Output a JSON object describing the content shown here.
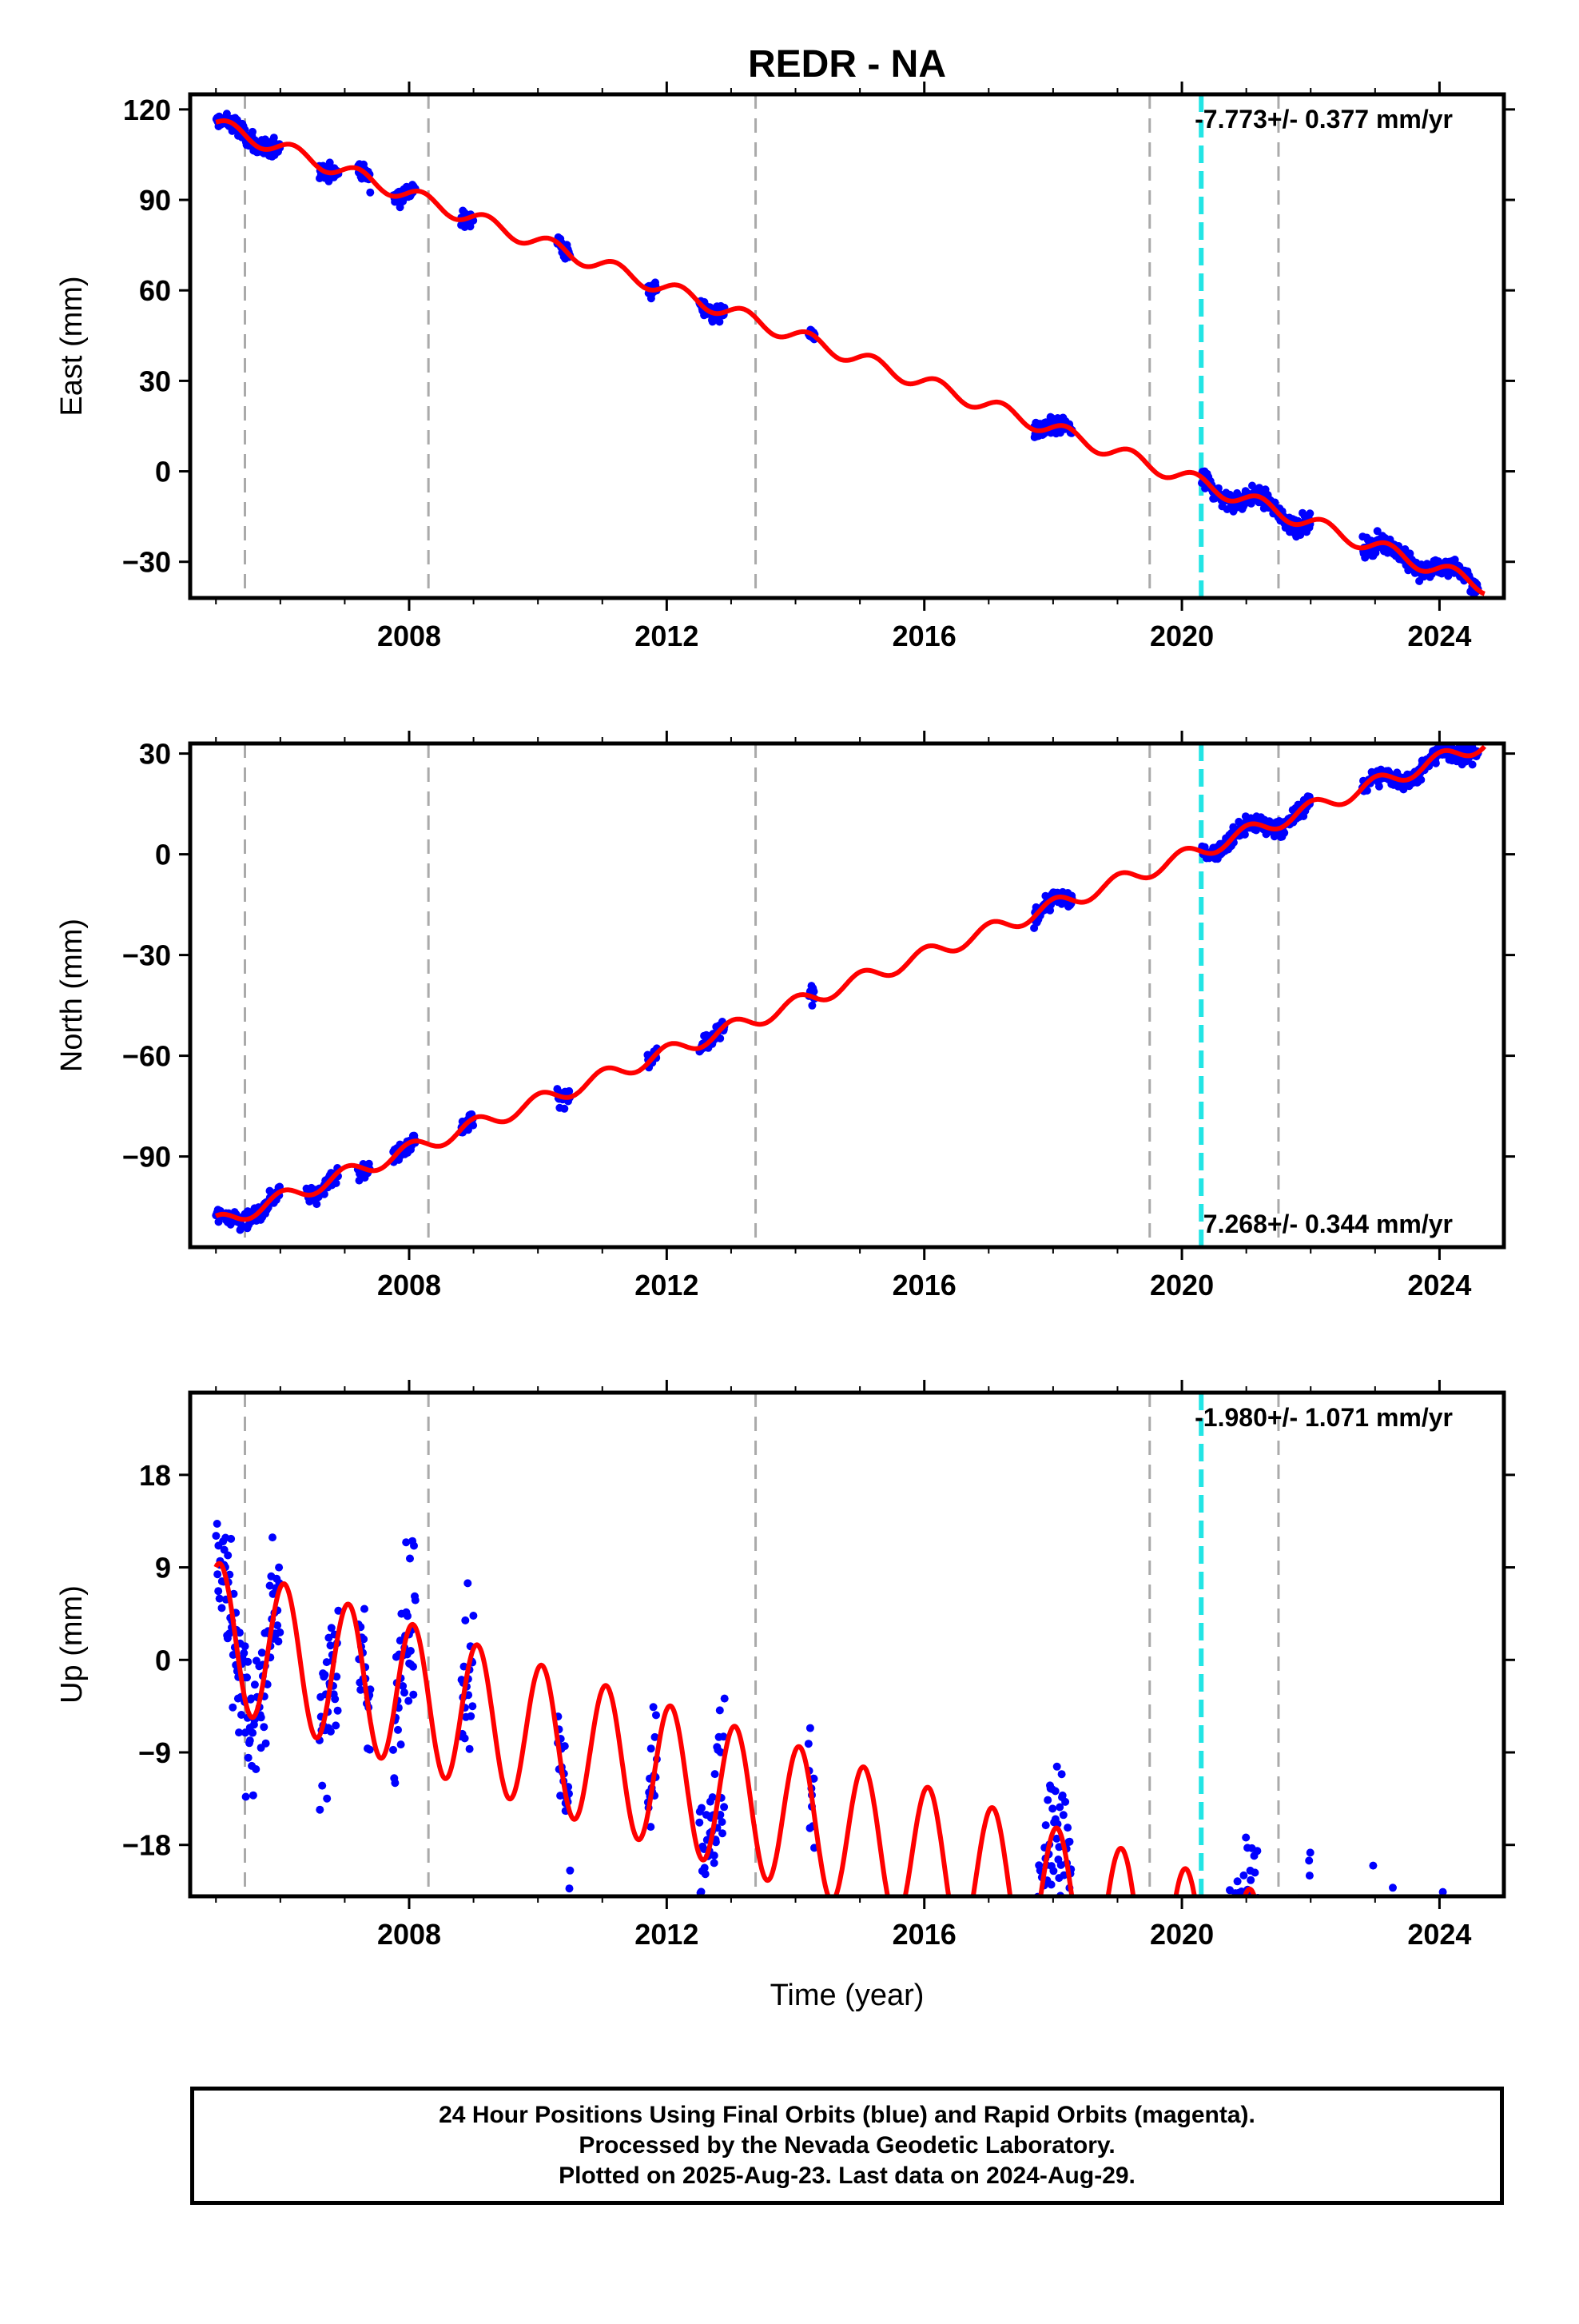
{
  "title": "REDR - NA",
  "colors": {
    "observations": "#0000ff",
    "model": "#ff0000",
    "event_marker": "#aaaaaa",
    "highlight_marker": "#22e5e5"
  },
  "x_axis_label": "Time (year)",
  "footer": {
    "line1": "24 Hour Positions Using Final Orbits (blue) and Rapid Orbits (magenta).",
    "line2": "Processed by the Nevada Geodetic Laboratory.",
    "line3": "Plotted on 2025-Aug-23. Last data on 2024-Aug-29."
  },
  "chart_data": [
    {
      "type": "scatter",
      "name": "east",
      "ylabel": "East (mm)",
      "velocity_label": "-7.773+/- 0.377 mm/yr",
      "velocity_position": "top-right",
      "xlim": [
        2004.6,
        2025.0
      ],
      "ylim": [
        -42,
        125
      ],
      "yticks": [
        120,
        90,
        60,
        30,
        0,
        -30
      ],
      "ytick_labels": [
        "120",
        "90",
        "60",
        "30",
        "0",
        "−30"
      ],
      "xticks": [
        2008,
        2012,
        2016,
        2020,
        2024
      ],
      "xtick_labels": [
        "2008",
        "2012",
        "2016",
        "2020",
        "2024"
      ],
      "event_lines": [
        2005.45,
        2008.3,
        2013.38,
        2019.5,
        2021.5
      ],
      "highlight_line": 2020.3,
      "model": {
        "rate": -7.773,
        "offset": 115.0,
        "t0": 2005.0,
        "amplitude": 2.5,
        "phase": 0.3
      },
      "observation_windows": [
        [
          2005.0,
          2006.0
        ],
        [
          2006.6,
          2006.9
        ],
        [
          2007.2,
          2007.4
        ],
        [
          2007.75,
          2008.1
        ],
        [
          2008.8,
          2009.0
        ],
        [
          2010.3,
          2010.5
        ],
        [
          2011.7,
          2011.85
        ],
        [
          2012.5,
          2012.9
        ],
        [
          2014.2,
          2014.3
        ],
        [
          2017.7,
          2018.3
        ],
        [
          2020.3,
          2022.0
        ],
        [
          2022.8,
          2024.6
        ]
      ],
      "observation_scatter": 2.2
    },
    {
      "type": "scatter",
      "name": "north",
      "ylabel": "North (mm)",
      "velocity_label": "7.268+/- 0.344 mm/yr",
      "velocity_position": "bottom-right",
      "xlim": [
        2004.6,
        2025.0
      ],
      "ylim": [
        -117,
        33
      ],
      "yticks": [
        30,
        0,
        -30,
        -60,
        -90
      ],
      "ytick_labels": [
        "30",
        "0",
        "−30",
        "−60",
        "−90"
      ],
      "xticks": [
        2008,
        2012,
        2016,
        2020,
        2024
      ],
      "xtick_labels": [
        "2008",
        "2012",
        "2016",
        "2020",
        "2024"
      ],
      "event_lines": [
        2005.45,
        2008.3,
        2013.38,
        2019.5,
        2021.5
      ],
      "highlight_line": 2020.3,
      "model": {
        "rate": 7.268,
        "offset": -110.0,
        "t0": 2005.0,
        "amplitude": 2.3,
        "phase": 1.4
      },
      "observation_windows": [
        [
          2005.0,
          2006.0
        ],
        [
          2006.4,
          2006.9
        ],
        [
          2007.2,
          2007.4
        ],
        [
          2007.75,
          2008.1
        ],
        [
          2008.8,
          2009.0
        ],
        [
          2010.3,
          2010.5
        ],
        [
          2011.7,
          2011.85
        ],
        [
          2012.5,
          2012.9
        ],
        [
          2014.2,
          2014.3
        ],
        [
          2017.7,
          2018.3
        ],
        [
          2020.3,
          2022.0
        ],
        [
          2022.8,
          2024.6
        ]
      ],
      "observation_scatter": 1.8
    },
    {
      "type": "scatter",
      "name": "up",
      "ylabel": "Up (mm)",
      "velocity_label": "-1.980+/- 1.071 mm/yr",
      "velocity_position": "top-right",
      "xlim": [
        2004.6,
        2025.0
      ],
      "ylim": [
        -23,
        26
      ],
      "yticks": [
        18,
        9,
        0,
        -9,
        -18
      ],
      "ytick_labels": [
        "18",
        "9",
        "0",
        "−9",
        "−18"
      ],
      "xticks": [
        2008,
        2012,
        2016,
        2020,
        2024
      ],
      "xtick_labels": [
        "2008",
        "2012",
        "2016",
        "2020",
        "2024"
      ],
      "event_lines": [
        2005.45,
        2008.3,
        2013.38,
        2019.5,
        2021.5
      ],
      "highlight_line": 2020.3,
      "model": {
        "rate": -1.98,
        "offset": 2.5,
        "t0": 2005.0,
        "amplitude": 7.0,
        "phase": 1.2
      },
      "observation_windows": [
        [
          2005.0,
          2006.0
        ],
        [
          2006.6,
          2006.9
        ],
        [
          2007.2,
          2007.4
        ],
        [
          2007.75,
          2008.1
        ],
        [
          2008.8,
          2009.0
        ],
        [
          2010.3,
          2010.5
        ],
        [
          2011.7,
          2011.85
        ],
        [
          2012.5,
          2012.9
        ],
        [
          2014.2,
          2014.3
        ],
        [
          2017.7,
          2018.3
        ],
        [
          2020.3,
          2022.0
        ],
        [
          2022.8,
          2024.6
        ]
      ],
      "observation_scatter": 5.0
    }
  ]
}
